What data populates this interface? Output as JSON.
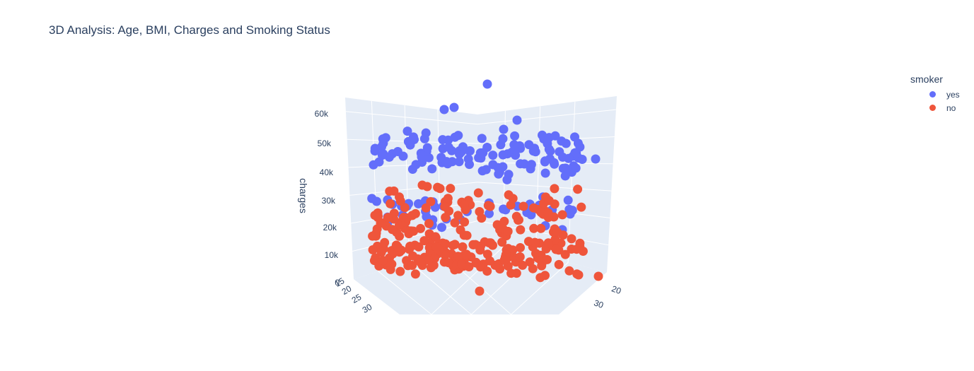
{
  "chart_data": {
    "type": "scatter3d",
    "title": "3D Analysis: Age, BMI, Charges and Smoking Status",
    "axes": {
      "x": {
        "label": "",
        "ticks": [
          "20",
          "30"
        ]
      },
      "y": {
        "label": "",
        "ticks": [
          "15",
          "20",
          "25",
          "30"
        ]
      },
      "z": {
        "label": "charges",
        "ticks": [
          "0",
          "10k",
          "20k",
          "30k",
          "40k",
          "50k",
          "60k"
        ],
        "range": [
          0,
          65000
        ]
      }
    },
    "legend": {
      "title": "smoker",
      "placement": "top-right"
    },
    "series": [
      {
        "name": "yes",
        "color": "#636efa",
        "count": 160,
        "charge_range": [
          20000,
          63800
        ]
      },
      {
        "name": "no",
        "color": "#ef553b",
        "count": 260,
        "charge_range": [
          1100,
          36000
        ]
      }
    ]
  }
}
